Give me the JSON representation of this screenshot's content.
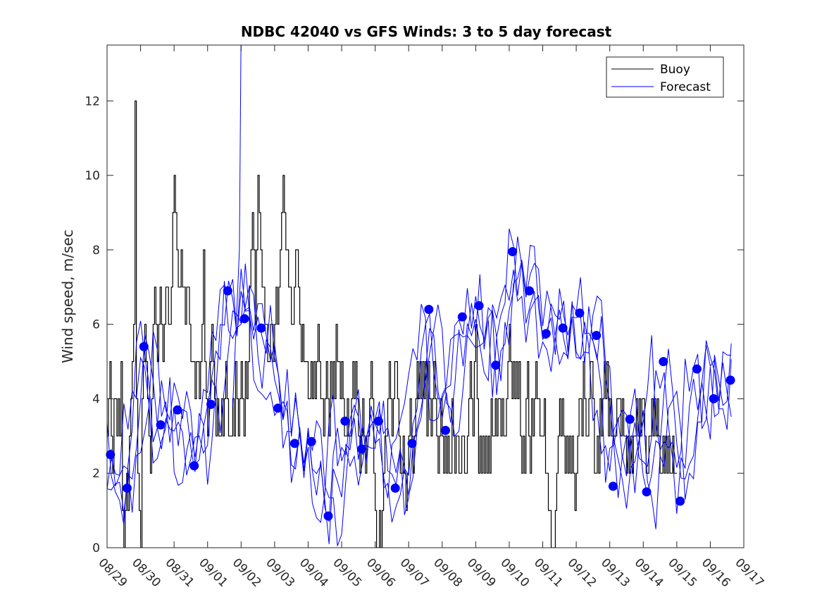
{
  "chart_data": {
    "type": "line",
    "title": "NDBC 42040 vs GFS Winds: 3 to 5 day forecast",
    "xlabel": "",
    "ylabel": "Wind speed, m/sec",
    "ylim": [
      0,
      13.5
    ],
    "yticks": [
      0,
      2,
      4,
      6,
      8,
      10,
      12
    ],
    "xlim": [
      0,
      19
    ],
    "xtick_labels": [
      "08/29",
      "08/30",
      "08/31",
      "09/01",
      "09/02",
      "09/03",
      "09/04",
      "09/05",
      "09/06",
      "09/07",
      "09/08",
      "09/09",
      "09/10",
      "09/11",
      "09/12",
      "09/13",
      "09/14",
      "09/15",
      "09/16",
      "09/17"
    ],
    "legend": {
      "location": "top-right",
      "entries": [
        {
          "name": "Buoy",
          "color": "#000000"
        },
        {
          "name": "Forecast",
          "color": "#0000ff"
        }
      ]
    },
    "series": [
      {
        "name": "Buoy",
        "color": "#000000",
        "x_step_days": 0.04167,
        "y_start": 3,
        "values": [
          3,
          4,
          5,
          3,
          2,
          4,
          4,
          3,
          4,
          3,
          5,
          1,
          0,
          1,
          2,
          1,
          3,
          4,
          5,
          6,
          12,
          4,
          2,
          1,
          0,
          4,
          5,
          6,
          5,
          4,
          3,
          2,
          4,
          6,
          7,
          6,
          5,
          6,
          7,
          6,
          5,
          6,
          7,
          7,
          6,
          6,
          7,
          9,
          10,
          9,
          8,
          7,
          7,
          8,
          7,
          7,
          6,
          7,
          7,
          6,
          5,
          5,
          5,
          4,
          5,
          5,
          4,
          5,
          6,
          8,
          5,
          4,
          3,
          4,
          5,
          6,
          5,
          4,
          3,
          4,
          3,
          3,
          4,
          3,
          4,
          5,
          4,
          3,
          3,
          3,
          4,
          3,
          5,
          4,
          3,
          4,
          5,
          4,
          3,
          5,
          4,
          5,
          7,
          8,
          9,
          8,
          6,
          8,
          10,
          9,
          8,
          7,
          7,
          6,
          6,
          5,
          5,
          6,
          6,
          5,
          6,
          7,
          6,
          7,
          8,
          9,
          10,
          9,
          8,
          8,
          7,
          7,
          6,
          6,
          7,
          8,
          8,
          7,
          6,
          5,
          6,
          5,
          5,
          5,
          4,
          4,
          5,
          4,
          5,
          4,
          5,
          6,
          5,
          4,
          4,
          3,
          4,
          5,
          4,
          3,
          5,
          4,
          5,
          4,
          6,
          5,
          5,
          4,
          5,
          4,
          3,
          3,
          4,
          3,
          3,
          4,
          5,
          4,
          5,
          4,
          3,
          2,
          3,
          4,
          3,
          2,
          3,
          3,
          4,
          5,
          4,
          2,
          1,
          0,
          0,
          1,
          0,
          1,
          2,
          3,
          3,
          4,
          5,
          4,
          3,
          4,
          5,
          5,
          4,
          3,
          2,
          2,
          3,
          2,
          1,
          2,
          3,
          4,
          3,
          2,
          3,
          4,
          5,
          4,
          5,
          4,
          5,
          4,
          5,
          3,
          5,
          4,
          3,
          4,
          5,
          4,
          3,
          2,
          3,
          4,
          3,
          2,
          3,
          2,
          3,
          2,
          2,
          4,
          3,
          2,
          3,
          3,
          2,
          2,
          3,
          3,
          2,
          2,
          3,
          4,
          5,
          4,
          3,
          5,
          6,
          4,
          2,
          3,
          2,
          3,
          2,
          3,
          2,
          3,
          2,
          4,
          3,
          3,
          4,
          3,
          4,
          4,
          3,
          4,
          3,
          3,
          4,
          5,
          6,
          5,
          4,
          5,
          4,
          5,
          4,
          5,
          3,
          2,
          3,
          2,
          4,
          5,
          3,
          2,
          4,
          3,
          4,
          5,
          4,
          4,
          3,
          3,
          3,
          4,
          2,
          2,
          1,
          1,
          0,
          0,
          0,
          1,
          2,
          3,
          4,
          3,
          4,
          3,
          2,
          3,
          2,
          3,
          2,
          3,
          2,
          1,
          2,
          3,
          4,
          4,
          3,
          5,
          4,
          3,
          3,
          4,
          5,
          5,
          4,
          2,
          2,
          3,
          2,
          4,
          3,
          4,
          5,
          4,
          5,
          3,
          4,
          3,
          3,
          3,
          3,
          4,
          4,
          4,
          3,
          4,
          3,
          3,
          2,
          3,
          2,
          3,
          2,
          3,
          3,
          4,
          3,
          4,
          3,
          4,
          4,
          3,
          2,
          2,
          3,
          3,
          4,
          3,
          4,
          3,
          4,
          3,
          2,
          2,
          3,
          2,
          3,
          2,
          3,
          2,
          2,
          3,
          2,
          2
        ]
      },
      {
        "name": "Forecast",
        "color": "#0000ff",
        "note": "multiple forecast lines"
      }
    ],
    "points": {
      "color": "#0000ff",
      "x": [
        0.1,
        0.6,
        1.1,
        1.6,
        2.1,
        2.6,
        3.1,
        3.6,
        4.1,
        4.6,
        5.1,
        5.6,
        6.1,
        6.6,
        7.1,
        7.6,
        8.1,
        8.6,
        9.1,
        9.6,
        10.1,
        10.6,
        11.1,
        11.6,
        12.1,
        12.6,
        13.1,
        13.6,
        14.1,
        14.6,
        15.1,
        15.6,
        16.1,
        16.6,
        17.1,
        17.6,
        18.1,
        18.6
      ],
      "y": [
        2.5,
        1.6,
        5.4,
        3.3,
        3.7,
        2.2,
        3.85,
        6.9,
        6.15,
        5.9,
        3.75,
        2.8,
        2.85,
        0.85,
        3.4,
        2.65,
        3.4,
        1.6,
        2.8,
        6.4,
        3.15,
        6.2,
        6.5,
        4.9,
        7.95,
        6.9,
        5.75,
        5.9,
        6.3,
        5.7,
        1.65,
        3.45,
        1.5,
        5.0,
        1.25,
        4.8,
        4.0,
        4.5
      ]
    }
  }
}
